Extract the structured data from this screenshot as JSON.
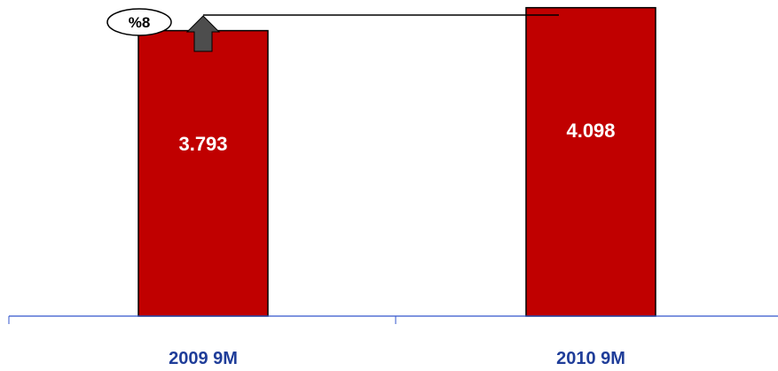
{
  "chart_data": {
    "type": "bar",
    "categories": [
      "2009 9M",
      "2010 9M"
    ],
    "values": [
      3793,
      4098
    ],
    "value_labels": [
      "3.793",
      "4.098"
    ],
    "ylim": [
      0,
      4200
    ],
    "grid": false,
    "annotations": [
      {
        "type": "growth-arrow",
        "text": "%8",
        "from": "2009 9M",
        "to": "2010 9M"
      }
    ]
  },
  "colors": {
    "bar_fill": "#c00000",
    "axis": "#3355cc",
    "category_text": "#1f3d99",
    "arrow": "#4d4d4d"
  },
  "icons": {
    "growth": "up-arrow-icon"
  }
}
